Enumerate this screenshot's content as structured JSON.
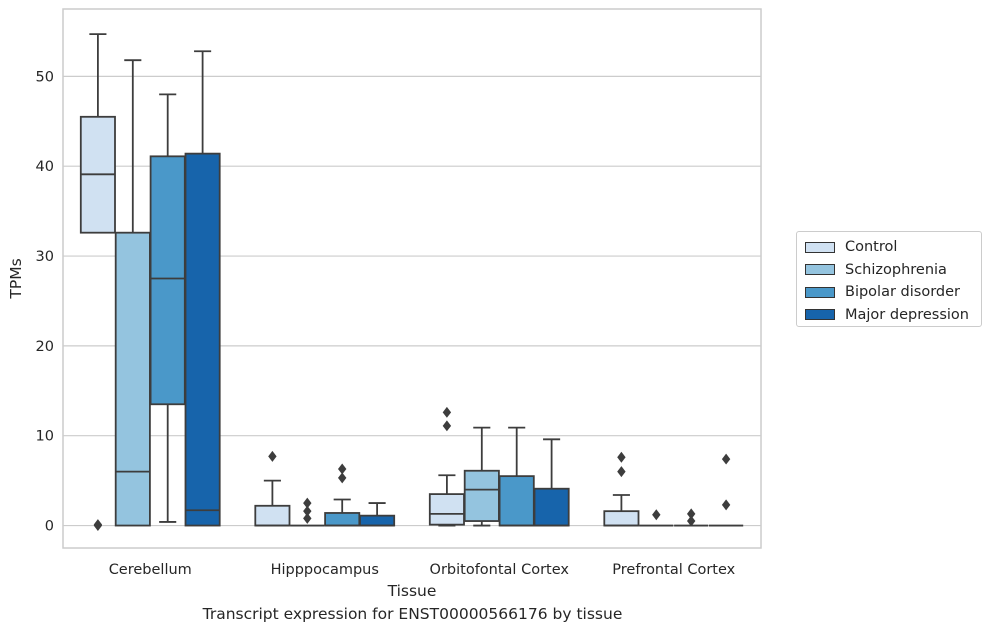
{
  "chart_data": {
    "type": "boxplot",
    "xlabel": "Tissue",
    "ylabel": "TPMs",
    "caption": "Transcript expression for ENST00000566176 by tissue",
    "ylim": [
      -2.5,
      57.5
    ],
    "yticks": [
      0,
      10,
      20,
      30,
      40,
      50
    ],
    "grid": "horizontal",
    "legend_position": "right",
    "categories": [
      "Cerebellum",
      "Hipppocampus",
      "Orbitofontal Cortex",
      "Prefrontal Cortex"
    ],
    "series": [
      {
        "name": "Control",
        "color": "#d0e1f2",
        "boxes": [
          {
            "whislo": 32.6,
            "q1": 32.6,
            "med": 39.1,
            "q3": 45.5,
            "whishi": 54.7,
            "fliers": [
              0.0,
              0.1
            ]
          },
          {
            "whislo": 0.0,
            "q1": 0.0,
            "med": 0.0,
            "q3": 2.2,
            "whishi": 5.0,
            "fliers": [
              7.7
            ]
          },
          {
            "whislo": 0.0,
            "q1": 0.1,
            "med": 1.3,
            "q3": 3.5,
            "whishi": 5.6,
            "fliers": [
              11.1,
              12.6
            ]
          },
          {
            "whislo": 0.0,
            "q1": 0.0,
            "med": 0.0,
            "q3": 1.6,
            "whishi": 3.4,
            "fliers": [
              6.0,
              7.6
            ]
          }
        ]
      },
      {
        "name": "Schizophrenia",
        "color": "#94c4df",
        "boxes": [
          {
            "whislo": 0.0,
            "q1": 0.0,
            "med": 6.0,
            "q3": 32.6,
            "whishi": 51.8,
            "fliers": []
          },
          {
            "whislo": 0.0,
            "q1": 0.0,
            "med": 0.0,
            "q3": 0.0,
            "whishi": 0.0,
            "fliers": [
              0.8,
              1.6,
              2.5
            ]
          },
          {
            "whislo": 0.0,
            "q1": 0.5,
            "med": 4.0,
            "q3": 6.1,
            "whishi": 10.9,
            "fliers": []
          },
          {
            "whislo": 0.0,
            "q1": 0.0,
            "med": 0.0,
            "q3": 0.0,
            "whishi": 0.0,
            "fliers": [
              1.2
            ]
          }
        ]
      },
      {
        "name": "Bipolar disorder",
        "color": "#4a98c9",
        "boxes": [
          {
            "whislo": 0.4,
            "q1": 13.5,
            "med": 27.5,
            "q3": 41.1,
            "whishi": 48.0,
            "fliers": []
          },
          {
            "whislo": 0.0,
            "q1": 0.0,
            "med": 0.0,
            "q3": 1.4,
            "whishi": 2.9,
            "fliers": [
              5.3,
              6.3
            ]
          },
          {
            "whislo": 0.0,
            "q1": 0.0,
            "med": 0.0,
            "q3": 5.5,
            "whishi": 10.9,
            "fliers": []
          },
          {
            "whislo": 0.0,
            "q1": 0.0,
            "med": 0.0,
            "q3": 0.0,
            "whishi": 0.0,
            "fliers": [
              0.5,
              1.3
            ]
          }
        ]
      },
      {
        "name": "Major depression",
        "color": "#1764ab",
        "boxes": [
          {
            "whislo": 0.0,
            "q1": 0.0,
            "med": 1.7,
            "q3": 41.4,
            "whishi": 52.8,
            "fliers": []
          },
          {
            "whislo": 0.0,
            "q1": 0.0,
            "med": 0.0,
            "q3": 1.1,
            "whishi": 2.5,
            "fliers": []
          },
          {
            "whislo": 0.0,
            "q1": 0.0,
            "med": 0.0,
            "q3": 4.1,
            "whishi": 9.6,
            "fliers": []
          },
          {
            "whislo": 0.0,
            "q1": 0.0,
            "med": 0.0,
            "q3": 0.0,
            "whishi": 0.0,
            "fliers": [
              2.3,
              7.4
            ]
          }
        ]
      }
    ]
  }
}
